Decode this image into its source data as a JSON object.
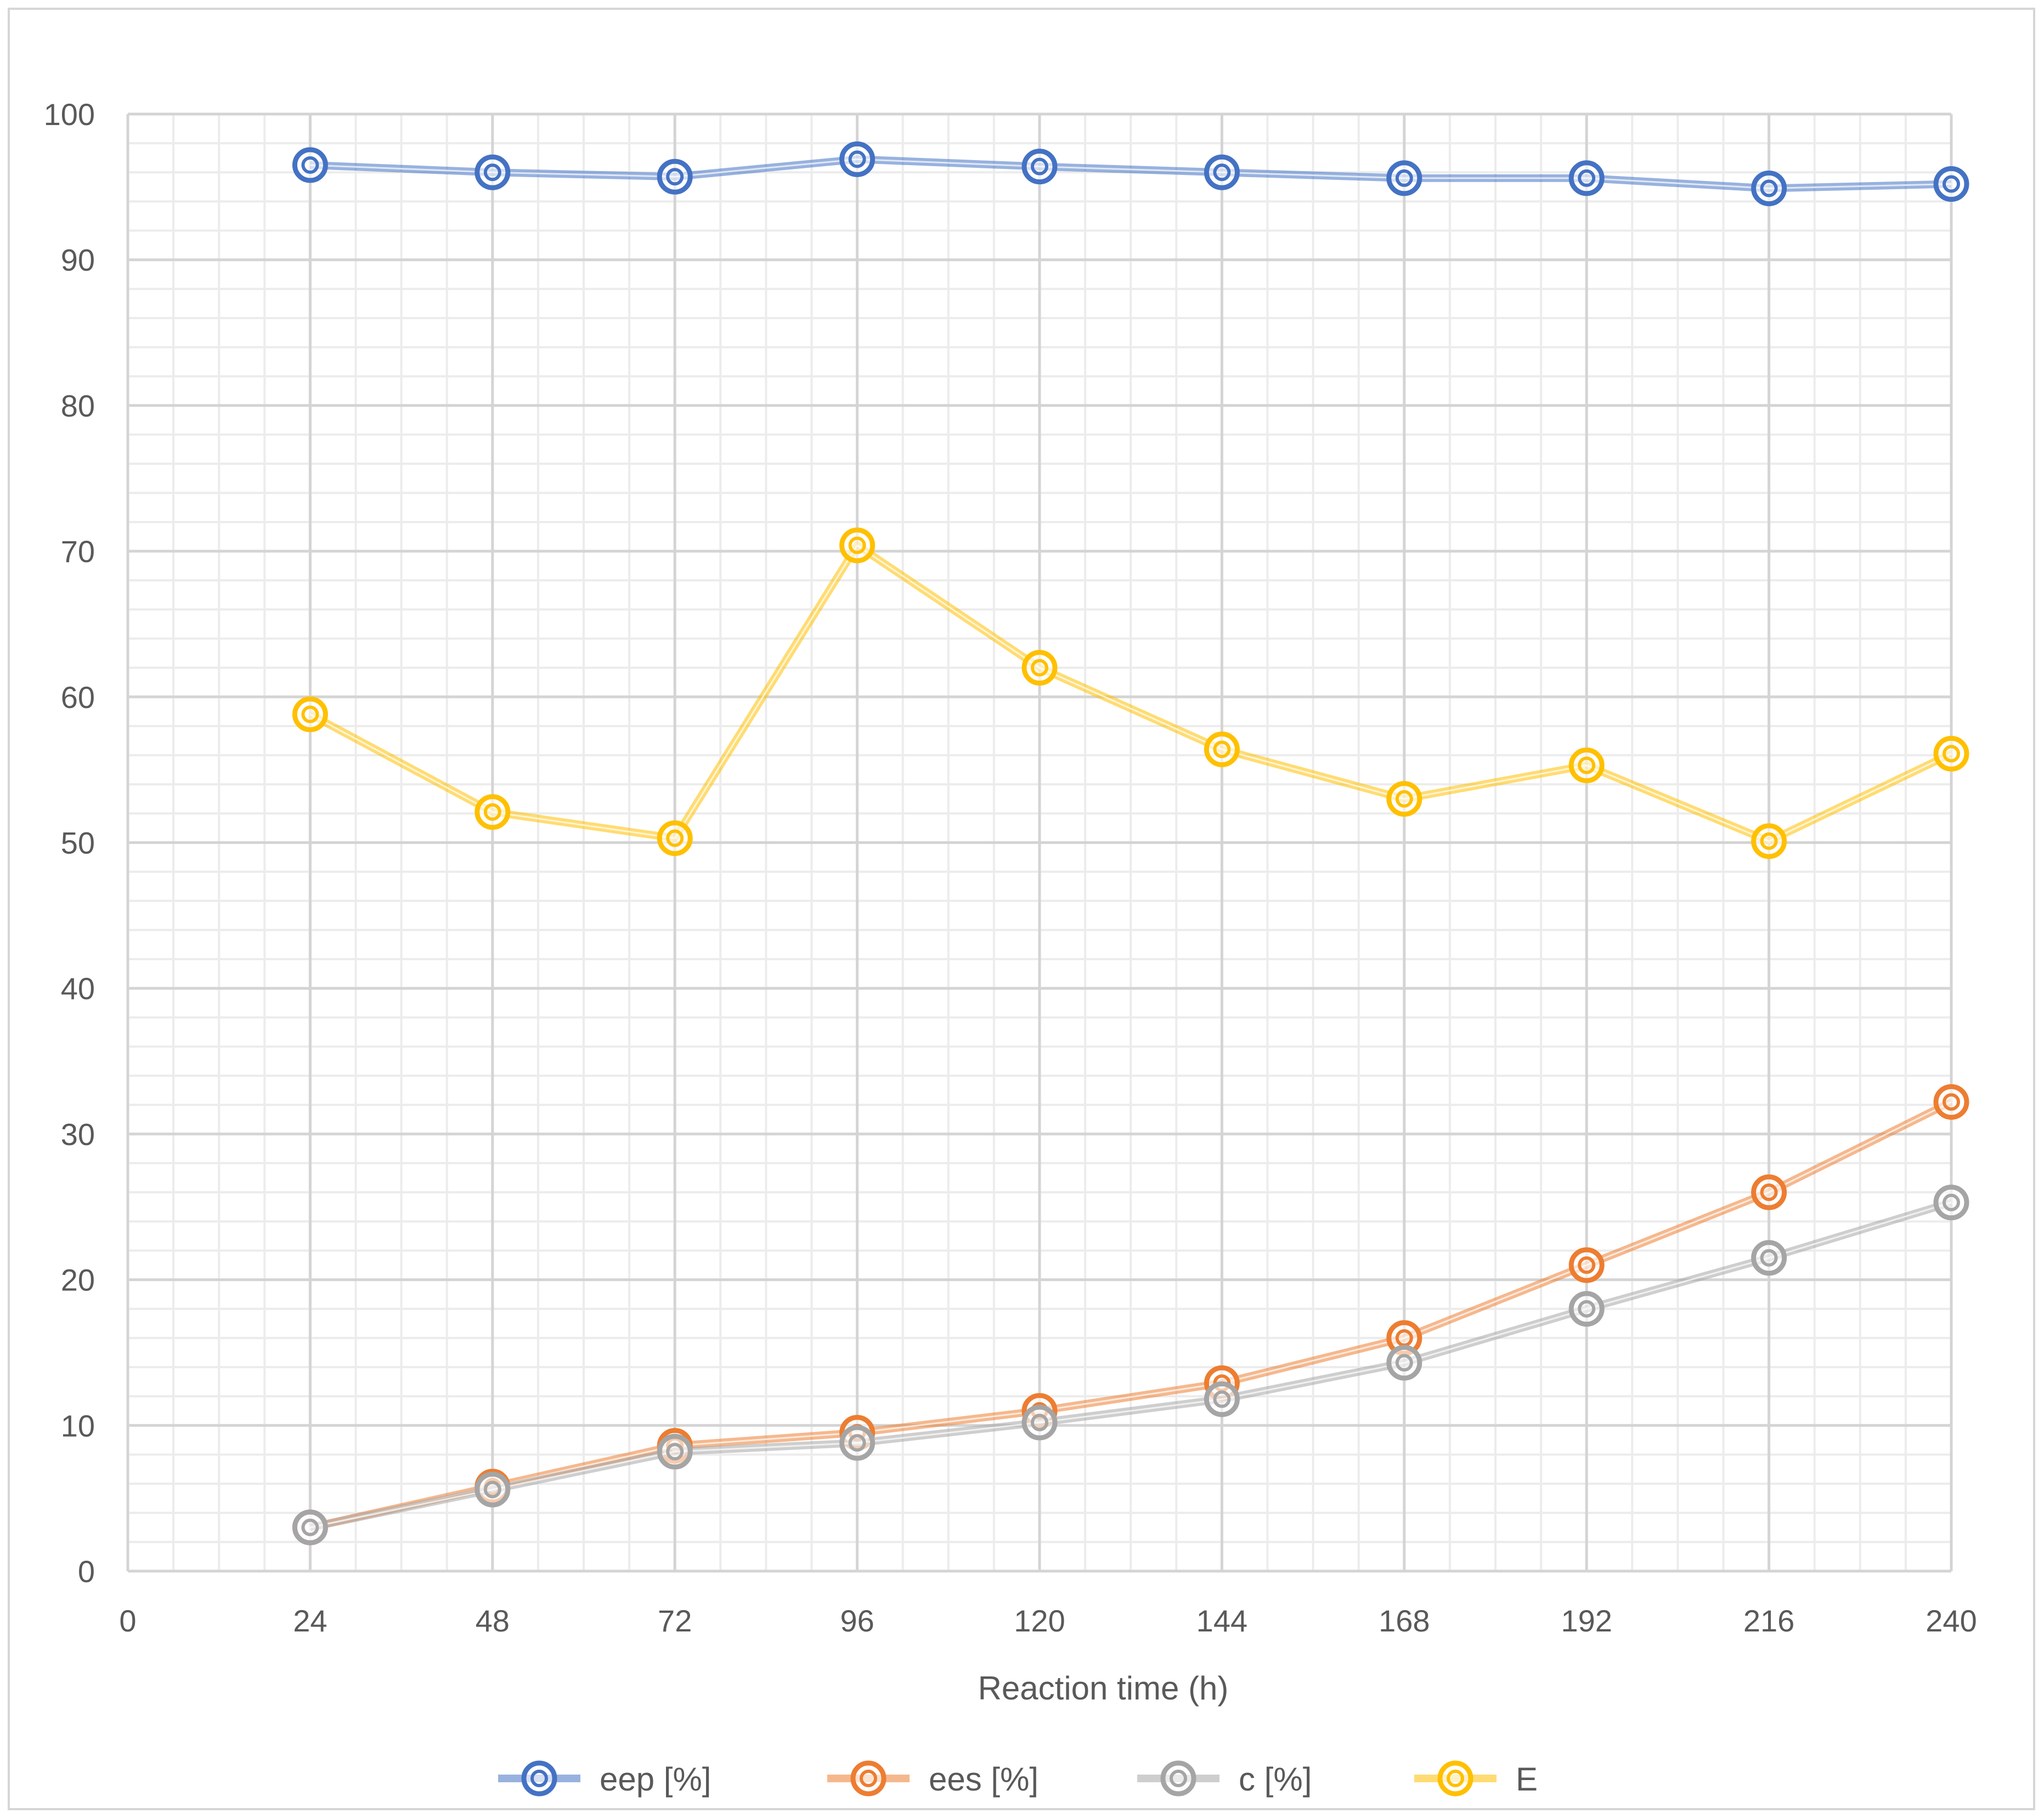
{
  "chart_data": {
    "type": "line",
    "title": "",
    "xlabel": "Reaction time (h)",
    "ylabel": "",
    "xlim": [
      0,
      240
    ],
    "ylim": [
      0,
      100
    ],
    "x_ticks": [
      0,
      24,
      48,
      72,
      96,
      120,
      144,
      168,
      192,
      216,
      240
    ],
    "y_ticks": [
      0,
      10,
      20,
      30,
      40,
      50,
      60,
      70,
      80,
      90,
      100
    ],
    "x_tick_labels": [
      "0",
      "24",
      "48",
      "72",
      "96",
      "120",
      "144",
      "168",
      "192",
      "216",
      "240"
    ],
    "y_tick_labels": [
      "0",
      "10",
      "20",
      "30",
      "40",
      "50",
      "60",
      "70",
      "80",
      "90",
      "100"
    ],
    "grid": true,
    "legend_position": "bottom",
    "x": [
      24,
      48,
      72,
      96,
      120,
      144,
      168,
      192,
      216,
      240
    ],
    "series": [
      {
        "name": "eep [%]",
        "color": "#4472c4",
        "values": [
          96.5,
          96.0,
          95.7,
          96.9,
          96.4,
          96.0,
          95.6,
          95.6,
          94.9,
          95.2
        ]
      },
      {
        "name": "ees [%]",
        "color": "#ed7d31",
        "values": [
          3.0,
          5.8,
          8.6,
          9.5,
          11.0,
          12.9,
          16.0,
          21.0,
          26.0,
          32.2
        ]
      },
      {
        "name": "c [%]",
        "color": "#a5a5a5",
        "values": [
          3.0,
          5.6,
          8.2,
          8.8,
          10.2,
          11.8,
          14.3,
          18.0,
          21.5,
          25.3
        ]
      },
      {
        "name": "E",
        "color": "#ffc000",
        "values": [
          58.8,
          52.1,
          50.3,
          70.4,
          62.0,
          56.4,
          53.0,
          55.3,
          50.1,
          56.1
        ]
      }
    ]
  }
}
